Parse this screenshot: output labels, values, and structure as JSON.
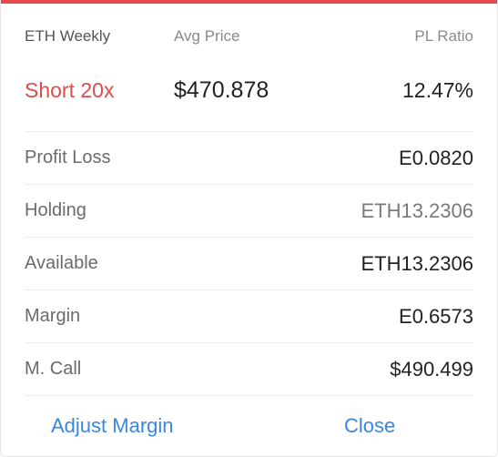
{
  "colors": {
    "accent_red": "#e8494b",
    "short_red": "#e04b4b",
    "link_blue": "#3a86e0"
  },
  "header": {
    "instrument": "ETH Weekly",
    "avg_price_label": "Avg Price",
    "pl_ratio_label": "PL Ratio"
  },
  "summary": {
    "position": "Short 20x",
    "avg_price": "$470.878",
    "pl_ratio": "12.47%"
  },
  "details": [
    {
      "label": "Profit Loss",
      "value": "E0.0820"
    },
    {
      "label": "Holding",
      "value": "ETH13.2306"
    },
    {
      "label": "Available",
      "value": "ETH13.2306"
    },
    {
      "label": "Margin",
      "value": "E0.6573"
    },
    {
      "label": "M. Call",
      "value": "$490.499"
    }
  ],
  "actions": {
    "adjust_margin": "Adjust Margin",
    "close": "Close"
  }
}
